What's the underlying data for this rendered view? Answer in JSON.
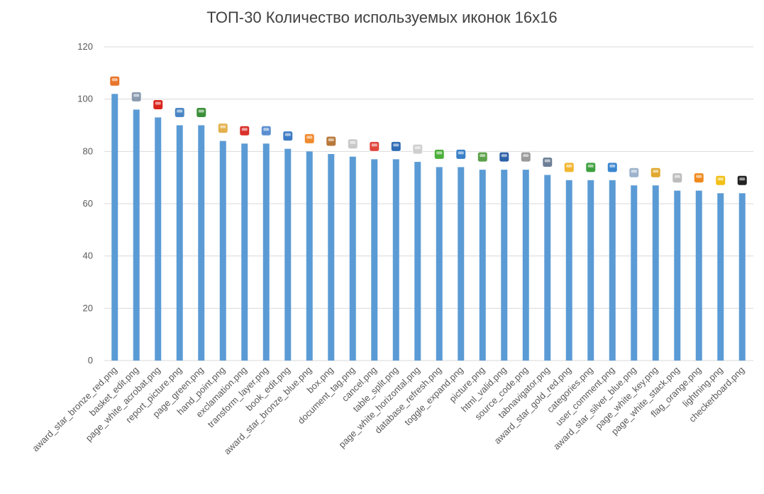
{
  "chart_data": {
    "type": "bar",
    "title": "ТОП-30 Количество используемых иконок 16x16",
    "xlabel": "",
    "ylabel": "",
    "ylim": [
      0,
      120
    ],
    "yticks": [
      0,
      20,
      40,
      60,
      80,
      100,
      120
    ],
    "grid": true,
    "legend": "none",
    "bar_color": "#5B9BD5",
    "categories": [
      "award_star_bronze_red.png",
      "basket_edit.png",
      "page_white_acrobat.png",
      "report_picture.png",
      "page_green.png",
      "hand_point.png",
      "exclamation.png",
      "transform_layer.png",
      "book_edit.png",
      "award_star_bronze_blue.png",
      "box.png",
      "document_tag.png",
      "cancel.png",
      "table_split.png",
      "page_white_horizontal.png",
      "database_refresh.png",
      "toggle_expand.png",
      "picture.png",
      "html_valid.png",
      "source_code.png",
      "tabnavigator.png",
      "award_star_gold_red.png",
      "categories.png",
      "user_comment.png",
      "award_star_silver_blue.png",
      "page_white_key.png",
      "page_white_stack.png",
      "flag_orange.png",
      "lightning.png",
      "checkerboard.png"
    ],
    "values": [
      102,
      96,
      93,
      90,
      90,
      84,
      83,
      83,
      81,
      80,
      79,
      78,
      77,
      77,
      76,
      74,
      74,
      73,
      73,
      73,
      71,
      69,
      69,
      69,
      67,
      67,
      65,
      65,
      64,
      64
    ],
    "bar_icons": [
      {
        "icon": "award-star-bronze-red-icon",
        "color": "#E8762B"
      },
      {
        "icon": "basket-edit-icon",
        "color": "#8A9BB0"
      },
      {
        "icon": "page-white-acrobat-icon",
        "color": "#D9241C"
      },
      {
        "icon": "report-picture-icon",
        "color": "#4A86C5"
      },
      {
        "icon": "page-green-icon",
        "color": "#3B8F3B"
      },
      {
        "icon": "hand-point-icon",
        "color": "#E3B04B"
      },
      {
        "icon": "exclamation-icon",
        "color": "#D9302A"
      },
      {
        "icon": "transform-layer-icon",
        "color": "#5C8FD0"
      },
      {
        "icon": "book-edit-icon",
        "color": "#3E7CC4"
      },
      {
        "icon": "award-star-bronze-blue-icon",
        "color": "#F08A2E"
      },
      {
        "icon": "box-icon",
        "color": "#B8783A"
      },
      {
        "icon": "document-tag-icon",
        "color": "#C8C8C8"
      },
      {
        "icon": "cancel-icon",
        "color": "#E0453C"
      },
      {
        "icon": "table-split-icon",
        "color": "#2F6DB5"
      },
      {
        "icon": "page-white-horizontal-icon",
        "color": "#CFCFCF"
      },
      {
        "icon": "database-refresh-icon",
        "color": "#4CAF3A"
      },
      {
        "icon": "toggle-expand-icon",
        "color": "#3A80C8"
      },
      {
        "icon": "picture-icon",
        "color": "#5AA048"
      },
      {
        "icon": "html-valid-icon",
        "color": "#2E62A8"
      },
      {
        "icon": "source-code-icon",
        "color": "#9A9A9A"
      },
      {
        "icon": "tabnavigator-icon",
        "color": "#6E7F96"
      },
      {
        "icon": "award-star-gold-red-icon",
        "color": "#F2B630"
      },
      {
        "icon": "categories-icon",
        "color": "#3FA040"
      },
      {
        "icon": "user-comment-icon",
        "color": "#3C86D0"
      },
      {
        "icon": "award-star-silver-blue-icon",
        "color": "#9EB3CC"
      },
      {
        "icon": "page-white-key-icon",
        "color": "#E0A830"
      },
      {
        "icon": "page-white-stack-icon",
        "color": "#BDBDBD"
      },
      {
        "icon": "flag-orange-icon",
        "color": "#F08A1E"
      },
      {
        "icon": "lightning-icon",
        "color": "#F2C018"
      },
      {
        "icon": "checkerboard-icon",
        "color": "#222222"
      }
    ]
  }
}
